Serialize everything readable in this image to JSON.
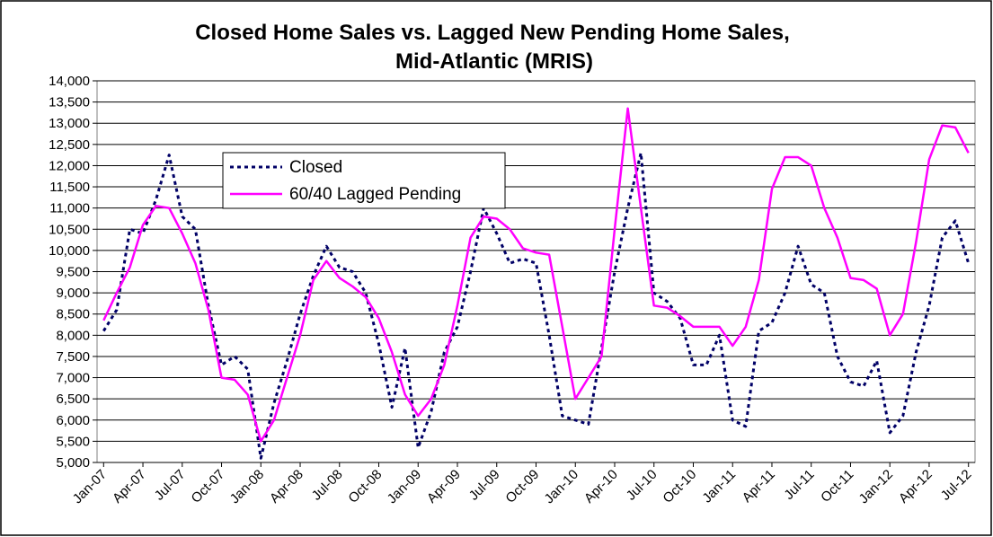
{
  "chart_data": {
    "type": "line",
    "title": "Closed Home Sales vs. Lagged New Pending Home Sales,",
    "subtitle": "Mid-Atlantic (MRIS)",
    "categories": [
      "Jan-07",
      null,
      null,
      "Apr-07",
      null,
      null,
      "Jul-07",
      null,
      null,
      "Oct-07",
      null,
      null,
      "Jan-08",
      null,
      null,
      "Apr-08",
      null,
      null,
      "Jul-08",
      null,
      null,
      "Oct-08",
      null,
      null,
      "Jan-09",
      null,
      null,
      "Apr-09",
      null,
      null,
      "Jul-09",
      null,
      null,
      "Oct-09",
      null,
      null,
      "Jan-10",
      null,
      null,
      "Apr-10",
      null,
      null,
      "Jul-10",
      null,
      null,
      "Oct-10",
      null,
      null,
      "Jan-11",
      null,
      null,
      "Apr-11",
      null,
      null,
      "Jul-11",
      null,
      null,
      "Oct-11",
      null,
      null,
      "Jan-12",
      null,
      null,
      "Apr-12",
      null,
      null,
      "Jul-12"
    ],
    "series": [
      {
        "name": "Closed",
        "color": "#000066",
        "dashed": true,
        "values": [
          8100,
          8600,
          10500,
          10400,
          11200,
          12250,
          10800,
          10500,
          8700,
          7300,
          7500,
          7200,
          5100,
          6400,
          7400,
          8500,
          9400,
          10100,
          9600,
          9500,
          9000,
          7800,
          6300,
          7700,
          5350,
          6200,
          7600,
          8200,
          9500,
          11000,
          10400,
          9700,
          9800,
          9700,
          8000,
          6100,
          6000,
          5900,
          7700,
          9500,
          11000,
          12300,
          9000,
          8800,
          8400,
          7300,
          7300,
          8000,
          6000,
          5850,
          8100,
          8300,
          9000,
          10100,
          9200,
          9000,
          7500,
          6900,
          6800,
          7400,
          5700,
          6100,
          7600,
          8700,
          10300,
          10700,
          9700
        ]
      },
      {
        "name": "60/40 Lagged Pending",
        "color": "#ff00ff",
        "dashed": false,
        "values": [
          8350,
          9000,
          9600,
          10600,
          11050,
          11000,
          10400,
          9700,
          8600,
          7000,
          6950,
          6600,
          5500,
          6000,
          7000,
          8000,
          9300,
          9750,
          9350,
          9150,
          8900,
          8400,
          7600,
          6600,
          6100,
          6500,
          7300,
          8700,
          10300,
          10800,
          10750,
          10500,
          10050,
          9950,
          9900,
          8200,
          6500,
          7000,
          7500,
          10500,
          13350,
          11000,
          8700,
          8650,
          8450,
          8200,
          8200,
          8200,
          7750,
          8200,
          9300,
          11450,
          12200,
          12200,
          12000,
          11000,
          10300,
          9350,
          9300,
          9100,
          8000,
          8500,
          10200,
          12150,
          12950,
          12900,
          12300
        ]
      }
    ],
    "ylim": [
      5000,
      14000
    ],
    "yticks": [
      {
        "value": 5000,
        "label": "5,000"
      },
      {
        "value": 5500,
        "label": "5,500"
      },
      {
        "value": 6000,
        "label": "6,000"
      },
      {
        "value": 6500,
        "label": "6,500"
      },
      {
        "value": 7000,
        "label": "7,000"
      },
      {
        "value": 7500,
        "label": "7,500"
      },
      {
        "value": 8000,
        "label": "8,000"
      },
      {
        "value": 8500,
        "label": "8,500"
      },
      {
        "value": 9000,
        "label": "9,000"
      },
      {
        "value": 9500,
        "label": "9,500"
      },
      {
        "value": 10000,
        "label": "10,000"
      },
      {
        "value": 10500,
        "label": "10,500"
      },
      {
        "value": 11000,
        "label": "11,000"
      },
      {
        "value": 11500,
        "label": "11,500"
      },
      {
        "value": 12000,
        "label": "12,000"
      },
      {
        "value": 12500,
        "label": "12,500"
      },
      {
        "value": 13000,
        "label": "13,000"
      },
      {
        "value": 13500,
        "label": "13,500"
      },
      {
        "value": 14000,
        "label": "14,000"
      }
    ],
    "grid": true
  }
}
